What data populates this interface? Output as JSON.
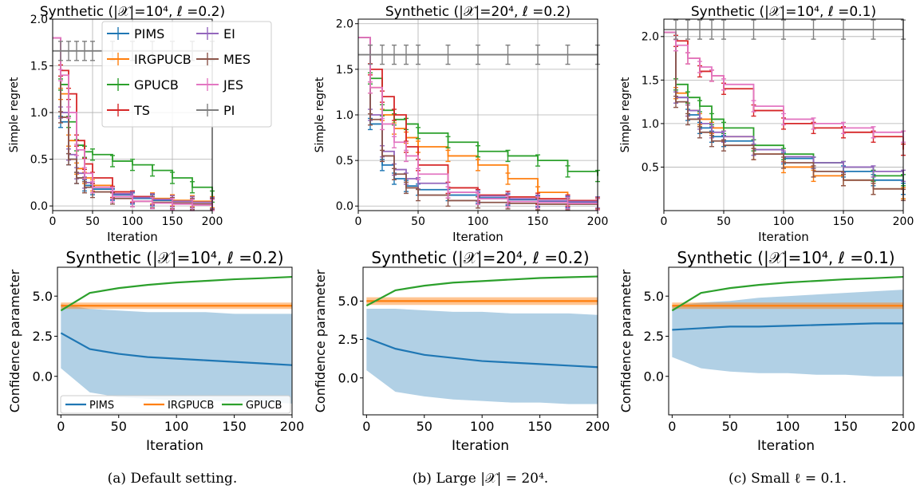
{
  "chart_data": [
    {
      "type": "line",
      "title": "Synthetic (|𝒳|=10⁴, ℓ =0.2)",
      "xlabel": "Iteration",
      "ylabel": "Simple regret",
      "xlim": [
        0,
        200
      ],
      "ylim": [
        -0.05,
        2.0
      ],
      "xticks": [
        0,
        50,
        100,
        150,
        200
      ],
      "yticks": [
        0.0,
        0.5,
        1.0,
        1.5,
        2.0
      ],
      "grid": true,
      "legend": "top-center",
      "x": [
        0,
        10,
        20,
        30,
        40,
        50,
        75,
        100,
        125,
        150,
        175,
        200
      ],
      "series": [
        {
          "name": "PIMS",
          "color": "#1f77b4",
          "values": [
            1.8,
            0.9,
            0.5,
            0.3,
            0.22,
            0.18,
            0.12,
            0.08,
            0.06,
            0.05,
            0.04,
            0.03
          ]
        },
        {
          "name": "IRGPUCB",
          "color": "#ff7f0e",
          "values": [
            1.8,
            1.2,
            0.7,
            0.4,
            0.3,
            0.22,
            0.15,
            0.1,
            0.08,
            0.06,
            0.05,
            0.04
          ]
        },
        {
          "name": "GPUCB",
          "color": "#2ca02c",
          "values": [
            1.8,
            1.3,
            0.9,
            0.65,
            0.58,
            0.55,
            0.48,
            0.44,
            0.38,
            0.3,
            0.2,
            0.1
          ]
        },
        {
          "name": "TS",
          "color": "#d62728",
          "values": [
            1.8,
            1.45,
            1.2,
            0.7,
            0.45,
            0.3,
            0.15,
            0.1,
            0.07,
            0.05,
            0.04,
            0.03
          ]
        },
        {
          "name": "EI",
          "color": "#9467bd",
          "values": [
            1.8,
            1.0,
            0.55,
            0.35,
            0.25,
            0.2,
            0.13,
            0.09,
            0.07,
            0.05,
            0.04,
            0.03
          ]
        },
        {
          "name": "MES",
          "color": "#8c564b",
          "values": [
            1.8,
            0.95,
            0.5,
            0.3,
            0.2,
            0.15,
            0.08,
            0.05,
            0.04,
            0.03,
            0.02,
            0.02
          ]
        },
        {
          "name": "JES",
          "color": "#e377c2",
          "values": [
            1.8,
            1.4,
            1.0,
            0.6,
            0.35,
            0.2,
            0.1,
            0.05,
            0.03,
            0.02,
            0.01,
            0.01
          ]
        },
        {
          "name": "PI",
          "color": "#7f7f7f",
          "values": [
            1.66,
            1.66,
            1.66,
            1.66,
            1.66,
            1.66,
            1.66,
            1.66,
            1.66,
            1.66,
            1.66,
            1.66
          ]
        }
      ]
    },
    {
      "type": "line",
      "title": "Synthetic (|𝒳|=20⁴, ℓ =0.2)",
      "xlabel": "Iteration",
      "ylabel": "Simple regret",
      "xlim": [
        0,
        200
      ],
      "ylim": [
        -0.05,
        2.05
      ],
      "xticks": [
        0,
        50,
        100,
        150,
        200
      ],
      "yticks": [
        0.0,
        0.5,
        1.0,
        1.5,
        2.0
      ],
      "grid": true,
      "x": [
        0,
        10,
        20,
        30,
        40,
        50,
        75,
        100,
        125,
        150,
        175,
        200
      ],
      "series": [
        {
          "name": "PIMS",
          "color": "#1f77b4",
          "values": [
            1.85,
            0.9,
            0.45,
            0.3,
            0.22,
            0.18,
            0.12,
            0.09,
            0.07,
            0.05,
            0.04,
            0.03
          ]
        },
        {
          "name": "IRGPUCB",
          "color": "#ff7f0e",
          "values": [
            1.85,
            1.3,
            1.0,
            0.85,
            0.75,
            0.65,
            0.55,
            0.45,
            0.3,
            0.15,
            0.06,
            0.03
          ]
        },
        {
          "name": "GPUCB",
          "color": "#2ca02c",
          "values": [
            1.85,
            1.4,
            1.05,
            0.95,
            0.9,
            0.8,
            0.7,
            0.6,
            0.55,
            0.5,
            0.38,
            0.33
          ]
        },
        {
          "name": "TS",
          "color": "#d62728",
          "values": [
            1.85,
            1.5,
            1.2,
            1.0,
            0.65,
            0.45,
            0.2,
            0.12,
            0.1,
            0.08,
            0.06,
            0.04
          ]
        },
        {
          "name": "EI",
          "color": "#9467bd",
          "values": [
            1.85,
            1.0,
            0.6,
            0.4,
            0.3,
            0.25,
            0.15,
            0.11,
            0.08,
            0.06,
            0.05,
            0.04
          ]
        },
        {
          "name": "MES",
          "color": "#8c564b",
          "values": [
            1.85,
            0.95,
            0.55,
            0.35,
            0.2,
            0.12,
            0.06,
            0.04,
            0.03,
            0.02,
            0.02,
            0.02
          ]
        },
        {
          "name": "JES",
          "color": "#e377c2",
          "values": [
            1.85,
            1.3,
            0.9,
            0.7,
            0.55,
            0.35,
            0.15,
            0.08,
            0.05,
            0.04,
            0.03,
            0.02
          ]
        },
        {
          "name": "PI",
          "color": "#7f7f7f",
          "values": [
            1.66,
            1.66,
            1.66,
            1.66,
            1.66,
            1.66,
            1.66,
            1.66,
            1.66,
            1.66,
            1.66,
            1.66
          ]
        }
      ]
    },
    {
      "type": "line",
      "title": "Synthetic (|𝒳|=10⁴, ℓ =0.1)",
      "xlabel": "Iteration",
      "ylabel": "Simple regret",
      "xlim": [
        0,
        200
      ],
      "ylim": [
        0.0,
        2.2
      ],
      "xticks": [
        0,
        50,
        100,
        150,
        200
      ],
      "yticks": [
        0.5,
        1.0,
        1.5,
        2.0
      ],
      "grid": true,
      "x": [
        0,
        10,
        20,
        30,
        40,
        50,
        75,
        100,
        125,
        150,
        175,
        200
      ],
      "series": [
        {
          "name": "PIMS",
          "color": "#1f77b4",
          "values": [
            2.05,
            1.3,
            1.1,
            0.95,
            0.85,
            0.8,
            0.7,
            0.6,
            0.55,
            0.45,
            0.35,
            0.25
          ]
        },
        {
          "name": "IRGPUCB",
          "color": "#ff7f0e",
          "values": [
            2.05,
            1.35,
            1.15,
            1.05,
            0.95,
            0.85,
            0.65,
            0.5,
            0.4,
            0.35,
            0.25,
            0.2
          ]
        },
        {
          "name": "GPUCB",
          "color": "#2ca02c",
          "values": [
            2.05,
            1.45,
            1.3,
            1.2,
            1.05,
            0.95,
            0.75,
            0.65,
            0.55,
            0.5,
            0.4,
            0.35
          ]
        },
        {
          "name": "TS",
          "color": "#d62728",
          "values": [
            2.05,
            1.95,
            1.75,
            1.6,
            1.55,
            1.4,
            1.15,
            1.0,
            0.95,
            0.9,
            0.85,
            0.7
          ]
        },
        {
          "name": "EI",
          "color": "#9467bd",
          "values": [
            2.05,
            1.3,
            1.15,
            1.0,
            0.9,
            0.85,
            0.7,
            0.62,
            0.55,
            0.5,
            0.45,
            0.4
          ]
        },
        {
          "name": "MES",
          "color": "#8c564b",
          "values": [
            2.05,
            1.25,
            1.05,
            0.9,
            0.8,
            0.75,
            0.65,
            0.55,
            0.45,
            0.35,
            0.25,
            0.18
          ]
        },
        {
          "name": "JES",
          "color": "#e377c2",
          "values": [
            2.05,
            1.9,
            1.75,
            1.65,
            1.55,
            1.45,
            1.2,
            1.05,
            1.0,
            0.95,
            0.9,
            0.85
          ]
        },
        {
          "name": "PI",
          "color": "#7f7f7f",
          "values": [
            2.08,
            2.08,
            2.08,
            2.08,
            2.08,
            2.08,
            2.08,
            2.08,
            2.08,
            2.08,
            2.08,
            2.08
          ]
        }
      ]
    },
    {
      "type": "area",
      "title": "Synthetic (|𝒳|=10⁴, ℓ =0.2)",
      "xlabel": "Iteration",
      "ylabel": "Confidence parameter",
      "xlim": [
        -3,
        200
      ],
      "ylim": [
        -2.4,
        6.8
      ],
      "xticks": [
        0,
        50,
        100,
        150,
        200
      ],
      "yticks": [
        0.0,
        2.5,
        5.0
      ],
      "grid": false,
      "legend": "bottom",
      "x": [
        0,
        25,
        50,
        75,
        100,
        125,
        150,
        175,
        200
      ],
      "series": [
        {
          "name": "PIMS",
          "color": "#1f77b4",
          "values": [
            2.7,
            1.7,
            1.4,
            1.2,
            1.1,
            1.0,
            0.9,
            0.8,
            0.7
          ],
          "lower": [
            0.5,
            -1.0,
            -1.3,
            -1.4,
            -1.5,
            -1.5,
            -1.6,
            -1.6,
            -1.7
          ],
          "upper": [
            4.5,
            4.2,
            4.1,
            4.0,
            4.0,
            4.0,
            3.9,
            3.9,
            3.9
          ]
        },
        {
          "name": "IRGPUCB",
          "color": "#ff7f0e",
          "values": [
            4.4,
            4.4,
            4.4,
            4.4,
            4.4,
            4.4,
            4.4,
            4.4,
            4.4
          ],
          "lower": [
            4.2,
            4.2,
            4.2,
            4.2,
            4.2,
            4.2,
            4.2,
            4.2,
            4.2
          ],
          "upper": [
            4.6,
            4.6,
            4.6,
            4.6,
            4.6,
            4.6,
            4.6,
            4.6,
            4.6
          ]
        },
        {
          "name": "GPUCB",
          "color": "#2ca02c",
          "values": [
            4.1,
            5.2,
            5.5,
            5.7,
            5.85,
            5.95,
            6.05,
            6.12,
            6.2
          ]
        }
      ]
    },
    {
      "type": "area",
      "title": "Synthetic (|𝒳|=20⁴, ℓ =0.2)",
      "xlabel": "Iteration",
      "ylabel": "Confidence parameter",
      "xlim": [
        -3,
        200
      ],
      "ylim": [
        -2.4,
        7.2
      ],
      "xticks": [
        0,
        50,
        100,
        150,
        200
      ],
      "yticks": [
        0.0,
        2.5,
        5.0
      ],
      "grid": false,
      "x": [
        0,
        25,
        50,
        75,
        100,
        125,
        150,
        175,
        200
      ],
      "series": [
        {
          "name": "PIMS",
          "color": "#1f77b4",
          "values": [
            2.6,
            1.9,
            1.5,
            1.3,
            1.1,
            1.0,
            0.9,
            0.8,
            0.7
          ],
          "lower": [
            0.5,
            -0.9,
            -1.2,
            -1.4,
            -1.5,
            -1.6,
            -1.6,
            -1.7,
            -1.7
          ],
          "upper": [
            4.5,
            4.5,
            4.4,
            4.3,
            4.3,
            4.2,
            4.2,
            4.2,
            4.1
          ]
        },
        {
          "name": "IRGPUCB",
          "color": "#ff7f0e",
          "values": [
            5.0,
            5.0,
            5.0,
            5.0,
            5.0,
            5.0,
            5.0,
            5.0,
            5.0
          ],
          "lower": [
            4.75,
            4.75,
            4.75,
            4.75,
            4.75,
            4.75,
            4.75,
            4.75,
            4.75
          ],
          "upper": [
            5.25,
            5.25,
            5.25,
            5.25,
            5.25,
            5.25,
            5.25,
            5.25,
            5.25
          ]
        },
        {
          "name": "GPUCB",
          "color": "#2ca02c",
          "values": [
            4.7,
            5.7,
            6.0,
            6.2,
            6.3,
            6.4,
            6.5,
            6.55,
            6.6
          ]
        }
      ]
    },
    {
      "type": "area",
      "title": "Synthetic (|𝒳|=10⁴, ℓ =0.1)",
      "xlabel": "Iteration",
      "ylabel": "Confidence parameter",
      "xlim": [
        -3,
        200
      ],
      "ylim": [
        -2.4,
        6.8
      ],
      "xticks": [
        0,
        50,
        100,
        150,
        200
      ],
      "yticks": [
        0.0,
        2.5,
        5.0
      ],
      "grid": false,
      "x": [
        0,
        25,
        50,
        75,
        100,
        125,
        150,
        175,
        200
      ],
      "series": [
        {
          "name": "PIMS",
          "color": "#1f77b4",
          "values": [
            2.9,
            3.0,
            3.1,
            3.1,
            3.15,
            3.2,
            3.25,
            3.3,
            3.3
          ],
          "lower": [
            1.2,
            0.5,
            0.3,
            0.2,
            0.2,
            0.1,
            0.1,
            0.0,
            0.0
          ],
          "upper": [
            4.4,
            4.6,
            4.7,
            4.9,
            5.0,
            5.1,
            5.2,
            5.3,
            5.4
          ]
        },
        {
          "name": "IRGPUCB",
          "color": "#ff7f0e",
          "values": [
            4.4,
            4.4,
            4.4,
            4.4,
            4.4,
            4.4,
            4.4,
            4.4,
            4.4
          ],
          "lower": [
            4.2,
            4.2,
            4.2,
            4.2,
            4.2,
            4.2,
            4.2,
            4.2,
            4.2
          ],
          "upper": [
            4.6,
            4.6,
            4.6,
            4.6,
            4.6,
            4.6,
            4.6,
            4.6,
            4.6
          ]
        },
        {
          "name": "GPUCB",
          "color": "#2ca02c",
          "values": [
            4.1,
            5.2,
            5.5,
            5.7,
            5.85,
            5.95,
            6.05,
            6.12,
            6.2
          ]
        }
      ]
    }
  ],
  "captions": [
    "(a) Default setting.",
    "(b) Large |𝒳| = 20⁴.",
    "(c) Small ℓ = 0.1."
  ]
}
